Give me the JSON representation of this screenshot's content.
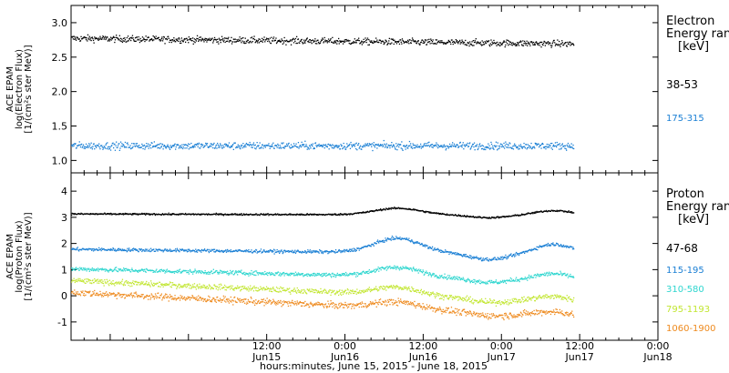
{
  "chart_data": [
    {
      "type": "scatter",
      "ylabel_lines": [
        "ACE EPAM",
        "log(Electron Flux)",
        "[1/(cm²s ster MeV)]"
      ],
      "ylim": [
        0.82,
        3.25
      ],
      "yticks": [
        1.0,
        1.5,
        2.0,
        2.5,
        3.0
      ],
      "ytick_labels": [
        "1.0",
        "1.5",
        "2.0",
        "2.5",
        "3.0"
      ],
      "legend": {
        "title_lines": [
          "Electron",
          "Energy ran",
          "[keV]"
        ],
        "placement": "right"
      },
      "series": [
        {
          "name": "38-53",
          "color": "#000000",
          "baseline": 2.78,
          "trend": -0.08,
          "noise": 0.045
        },
        {
          "name": "175-315",
          "color": "#1a7fd4",
          "baseline": 1.22,
          "trend": 0.0,
          "noise": 0.05
        }
      ]
    },
    {
      "type": "scatter",
      "ylabel_lines": [
        "ACE EPAM",
        "log(Proton Flux)",
        "[1/(cm²s ster MeV)]"
      ],
      "ylim": [
        -1.7,
        4.7
      ],
      "yticks": [
        -1,
        0,
        1,
        2,
        3,
        4
      ],
      "ytick_labels": [
        "-1",
        "0",
        "1",
        "2",
        "3",
        "4"
      ],
      "legend": {
        "title_lines": [
          "Proton",
          "Energy ran",
          "[keV]"
        ],
        "placement": "right"
      },
      "series": [
        {
          "name": "47-68",
          "color": "#000000",
          "baseline": 3.15,
          "trend": -0.05,
          "noise": 0.03
        },
        {
          "name": "115-195",
          "color": "#1a7fd4",
          "baseline": 1.8,
          "trend": -0.2,
          "noise": 0.06
        },
        {
          "name": "310-580",
          "color": "#2fd6cf",
          "baseline": 1.05,
          "trend": -0.45,
          "noise": 0.08
        },
        {
          "name": "795-1193",
          "color": "#c2e632",
          "baseline": 0.6,
          "trend": -0.85,
          "noise": 0.1
        },
        {
          "name": "1060-1900",
          "color": "#ee8a1e",
          "baseline": 0.15,
          "trend": -0.95,
          "noise": 0.12
        }
      ]
    }
  ],
  "x_axis": {
    "xlim_hours": [
      -18,
      72
    ],
    "data_end_hours": 59,
    "major_ticks": [
      {
        "hours": 12,
        "time": "12:00",
        "date": "Jun15"
      },
      {
        "hours": 24,
        "time": "0:00",
        "date": "Jun16"
      },
      {
        "hours": 36,
        "time": "12:00",
        "date": "Jun16"
      },
      {
        "hours": 48,
        "time": "0:00",
        "date": "Jun17"
      },
      {
        "hours": 60,
        "time": "12:00",
        "date": "Jun17"
      },
      {
        "hours": 72,
        "time": "0:00",
        "date": "Jun18"
      }
    ],
    "xlabel": "hours:minutes, June 15, 2015 - June 18, 2015"
  }
}
